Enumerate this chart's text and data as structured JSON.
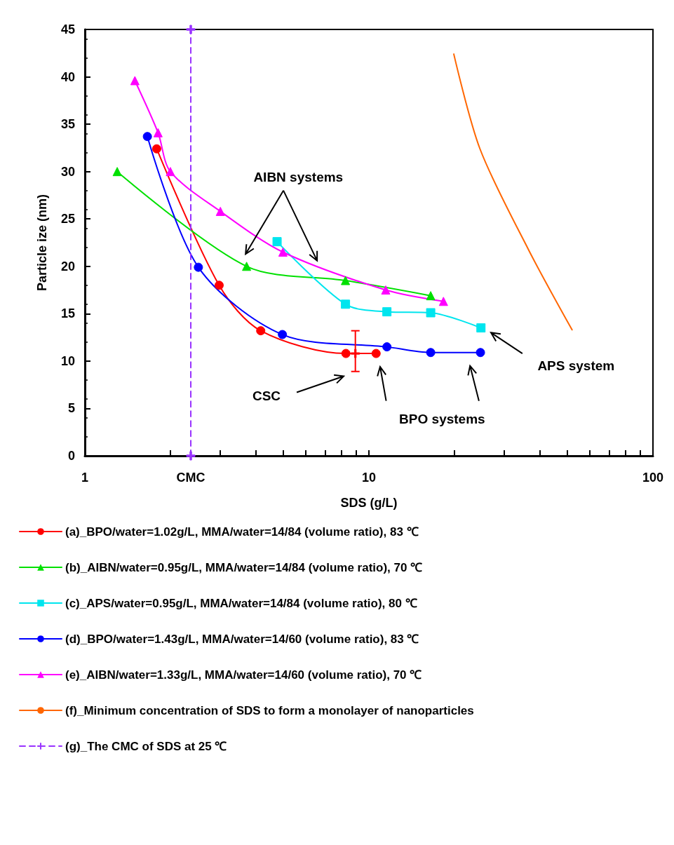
{
  "chart_data": {
    "type": "line",
    "xlabel": "SDS (g/L)",
    "ylabel": "Particle ize (nm)",
    "log": "x",
    "xlim": [
      1,
      100
    ],
    "ylim": [
      0,
      45
    ],
    "xticks": [
      1,
      {
        "value": 2,
        "label": null
      },
      {
        "value": 2.36,
        "label": "CMC"
      },
      {
        "value": 3,
        "label": null
      },
      {
        "value": 4,
        "label": null
      },
      {
        "value": 5,
        "label": null
      },
      {
        "value": 6,
        "label": null
      },
      {
        "value": 7,
        "label": null
      },
      {
        "value": 8,
        "label": null
      },
      {
        "value": 9,
        "label": null
      },
      10,
      {
        "value": 20,
        "label": null
      },
      {
        "value": 30,
        "label": null
      },
      {
        "value": 40,
        "label": null
      },
      {
        "value": 50,
        "label": null
      },
      {
        "value": 60,
        "label": null
      },
      {
        "value": 70,
        "label": null
      },
      {
        "value": 80,
        "label": null
      },
      {
        "value": 90,
        "label": null
      },
      100
    ],
    "yticks": [
      0,
      5,
      10,
      15,
      20,
      25,
      30,
      35,
      40,
      45
    ],
    "grid": false,
    "legend": "bottom",
    "series": [
      {
        "name": "(a)_BPO/water=1.02g/L, MMA/water=14/84 (volume ratio), 83 ℃",
        "color": "#ff0000",
        "marker": "circle",
        "x": [
          1.79,
          2.97,
          4.16,
          8.3,
          10.6
        ],
        "values": [
          32.4,
          18,
          13.2,
          10.8,
          10.8
        ]
      },
      {
        "name": "(b)_AIBN/water=0.95g/L, MMA/water=14/84 (volume ratio), 70 ℃",
        "color": "#00e000",
        "marker": "triangle",
        "x": [
          1.3,
          3.71,
          8.27,
          16.5
        ],
        "values": [
          30,
          20,
          18.5,
          16.9
        ]
      },
      {
        "name": "(c)_APS/water=0.95g/L, MMA/water=14/84 (volume ratio), 80 ℃",
        "color": "#00e5ee",
        "marker": "square",
        "x": [
          4.75,
          8.27,
          11.57,
          16.5,
          24.8
        ],
        "values": [
          22.6,
          16,
          15.2,
          15.1,
          13.5
        ]
      },
      {
        "name": "(d)_BPO/water=1.43g/L, MMA/water=14/60 (volume ratio), 83 ℃",
        "color": "#0000ff",
        "marker": "circle",
        "x": [
          1.66,
          2.51,
          4.96,
          11.57,
          16.5,
          24.7
        ],
        "values": [
          33.7,
          19.9,
          12.8,
          11.5,
          10.9,
          10.9
        ]
      },
      {
        "name": "(e)_AIBN/water=1.33g/L, MMA/water=14/60 (volume ratio), 70 ℃",
        "color": "#ff00ff",
        "marker": "triangle",
        "x": [
          1.5,
          1.81,
          2,
          3,
          4.98,
          11.46,
          18.3
        ],
        "values": [
          39.6,
          34.1,
          30,
          25.8,
          21.5,
          17.5,
          16.3
        ]
      },
      {
        "name": "(f)_Minimum concentration of SDS to form a monolayer of nanoparticles",
        "color": "#ff6600",
        "marker": "none",
        "x": [
          19.9,
          24.6,
          36.4,
          51.9
        ],
        "values": [
          42.4,
          32.4,
          21.8,
          13.3
        ]
      },
      {
        "name": "(g)_The CMC of SDS at 25 ℃",
        "color": "#9933ff",
        "marker": "cross",
        "line_style": "dashed",
        "x": [
          2.36,
          2.36
        ],
        "values": [
          0,
          45
        ]
      },
      {
        "type": "scatter",
        "color": "#ff0000",
        "marker": "cross",
        "x": [
          8.96
        ],
        "values": [
          10.8
        ],
        "errors": [
          [
            8.9,
            13.2
          ]
        ]
      }
    ],
    "annotations": [
      "AIBN systems",
      "CSC",
      "BPO systems",
      "APS system"
    ]
  }
}
